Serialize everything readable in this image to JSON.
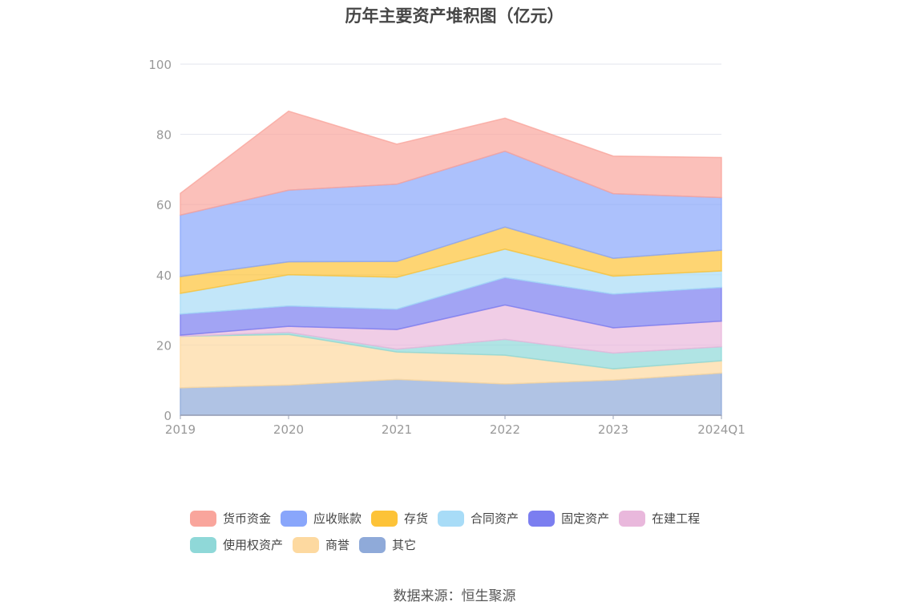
{
  "title": "历年主要资产堆积图（亿元）",
  "source": "数据来源：恒生聚源",
  "chart_data": {
    "type": "area",
    "stacked": true,
    "title": "历年主要资产堆积图（亿元）",
    "x": [
      "2019",
      "2020",
      "2021",
      "2022",
      "2023",
      "2024Q1"
    ],
    "ylim": [
      0,
      100
    ],
    "yticks": [
      0,
      20,
      40,
      60,
      80,
      100
    ],
    "grid": true,
    "legend_position": "bottom",
    "series": [
      {
        "name": "其它",
        "color": "#8faad9",
        "values": [
          7.8,
          8.6,
          10.2,
          8.9,
          10.0,
          12.0
        ]
      },
      {
        "name": "商誉",
        "color": "#fdd9a0",
        "values": [
          14.7,
          14.4,
          7.8,
          8.2,
          3.2,
          3.5
        ]
      },
      {
        "name": "使用权资产",
        "color": "#8fd8d8",
        "values": [
          0.0,
          0.6,
          0.8,
          4.5,
          4.5,
          4.0
        ]
      },
      {
        "name": "在建工程",
        "color": "#e9b8dc",
        "values": [
          0.3,
          1.7,
          5.6,
          9.8,
          7.2,
          7.3
        ]
      },
      {
        "name": "固定资产",
        "color": "#7b7ef0",
        "values": [
          6.0,
          5.8,
          5.8,
          7.8,
          9.6,
          9.6
        ]
      },
      {
        "name": "合同资产",
        "color": "#a8dcf7",
        "values": [
          5.9,
          8.9,
          9.1,
          8.1,
          5.1,
          4.7
        ]
      },
      {
        "name": "存货",
        "color": "#fdc338",
        "values": [
          4.8,
          3.7,
          4.5,
          6.3,
          5.1,
          5.9
        ]
      },
      {
        "name": "应收账款",
        "color": "#89a6fb",
        "values": [
          17.5,
          20.4,
          22.0,
          21.6,
          18.4,
          15.0
        ]
      },
      {
        "name": "货币资金",
        "color": "#f9a59c",
        "values": [
          6.2,
          22.5,
          11.4,
          9.4,
          10.7,
          11.4
        ]
      }
    ]
  },
  "legend": {
    "row1": [
      {
        "label": "货币资金",
        "color": "#f9a59c"
      },
      {
        "label": "应收账款",
        "color": "#89a6fb"
      },
      {
        "label": "存货",
        "color": "#fdc338"
      },
      {
        "label": "合同资产",
        "color": "#a8dcf7"
      },
      {
        "label": "固定资产",
        "color": "#7b7ef0"
      },
      {
        "label": "在建工程",
        "color": "#e9b8dc"
      }
    ],
    "row2": [
      {
        "label": "使用权资产",
        "color": "#8fd8d8"
      },
      {
        "label": "商誉",
        "color": "#fdd9a0"
      },
      {
        "label": "其它",
        "color": "#8faad9"
      }
    ]
  }
}
